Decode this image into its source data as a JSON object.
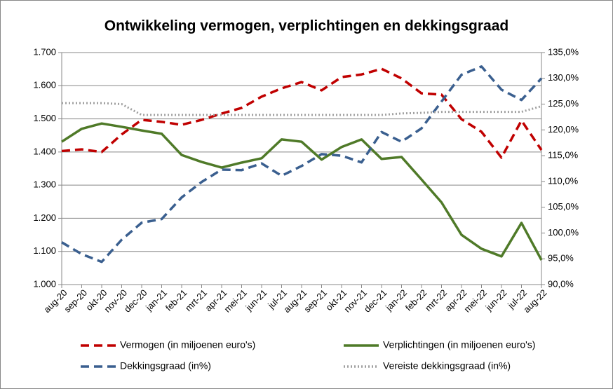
{
  "chart_data": {
    "type": "line",
    "title": "Ontwikkeling vermogen, verplichtingen en dekkingsgraad",
    "categories": [
      "aug-20",
      "sep-20",
      "okt-20",
      "nov-20",
      "dec-20",
      "jan-21",
      "feb-21",
      "mrt-21",
      "apr-21",
      "mei-21",
      "jun-21",
      "jul-21",
      "aug-21",
      "sep-21",
      "okt-21",
      "nov-21",
      "dec-21",
      "jan-22",
      "feb-22",
      "mrt-22",
      "apr-22",
      "mei-22",
      "jun-22",
      "jul-22",
      "aug-22"
    ],
    "series": [
      {
        "name": "Vermogen (in miljoenen euro's)",
        "color": "#c00000",
        "style": "dashed",
        "values": [
          1403,
          1408,
          1400,
          1453,
          1497,
          1491,
          1482,
          1497,
          1516,
          1533,
          1567,
          1592,
          1611,
          1586,
          1626,
          1634,
          1651,
          1622,
          1577,
          1573,
          1499,
          1461,
          1383,
          1495,
          1406
        ]
      },
      {
        "name": "Verplichtingen (in miljoenen euro's)",
        "color": "#4f7a28",
        "style": "solid",
        "values": [
          1431,
          1470,
          1486,
          1476,
          1465,
          1455,
          1391,
          1370,
          1353,
          1368,
          1381,
          1438,
          1431,
          1377,
          1415,
          1438,
          1379,
          1385,
          1317,
          1248,
          1150,
          1108,
          1085,
          1186,
          1074
        ]
      },
      {
        "name": "Dekkingsgraad (in%)",
        "color": "#3a5f8f",
        "style": "dashed",
        "axis": "y2",
        "values": [
          98.2,
          95.9,
          94.4,
          98.7,
          102.0,
          102.7,
          106.9,
          109.9,
          112.3,
          112.2,
          113.5,
          111.1,
          113.0,
          115.3,
          115.0,
          113.7,
          119.6,
          117.7,
          120.3,
          125.5,
          130.7,
          132.3,
          127.8,
          125.8,
          130.0
        ]
      },
      {
        "name": "Vereiste dekkingsgraad (in%)",
        "color": "#a0a0a0",
        "style": "dotted",
        "axis": "y2",
        "values": [
          125.2,
          125.2,
          125.2,
          125.0,
          122.9,
          122.9,
          122.9,
          122.9,
          122.9,
          122.9,
          122.9,
          122.9,
          122.9,
          122.9,
          122.9,
          122.9,
          122.9,
          123.2,
          123.3,
          123.5,
          123.5,
          123.5,
          123.5,
          123.5,
          124.6
        ]
      }
    ],
    "ylim": [
      1000,
      1700
    ],
    "yticks": [
      {
        "value": 1000,
        "label": "1.000"
      },
      {
        "value": 1100,
        "label": "1.100"
      },
      {
        "value": 1200,
        "label": "1.200"
      },
      {
        "value": 1300,
        "label": "1.300"
      },
      {
        "value": 1400,
        "label": "1.400"
      },
      {
        "value": 1500,
        "label": "1.500"
      },
      {
        "value": 1600,
        "label": "1.600"
      },
      {
        "value": 1700,
        "label": "1.700"
      }
    ],
    "y2lim": [
      90,
      135
    ],
    "y2ticks": [
      {
        "value": 90,
        "label": "90,0%"
      },
      {
        "value": 95,
        "label": "95,0%"
      },
      {
        "value": 100,
        "label": "100,0%"
      },
      {
        "value": 105,
        "label": "105,0%"
      },
      {
        "value": 110,
        "label": "110,0%"
      },
      {
        "value": 115,
        "label": "115,0%"
      },
      {
        "value": 120,
        "label": "120,0%"
      },
      {
        "value": 125,
        "label": "125,0%"
      },
      {
        "value": 130,
        "label": "130,0%"
      },
      {
        "value": 135,
        "label": "135,0%"
      }
    ],
    "grid": true
  }
}
